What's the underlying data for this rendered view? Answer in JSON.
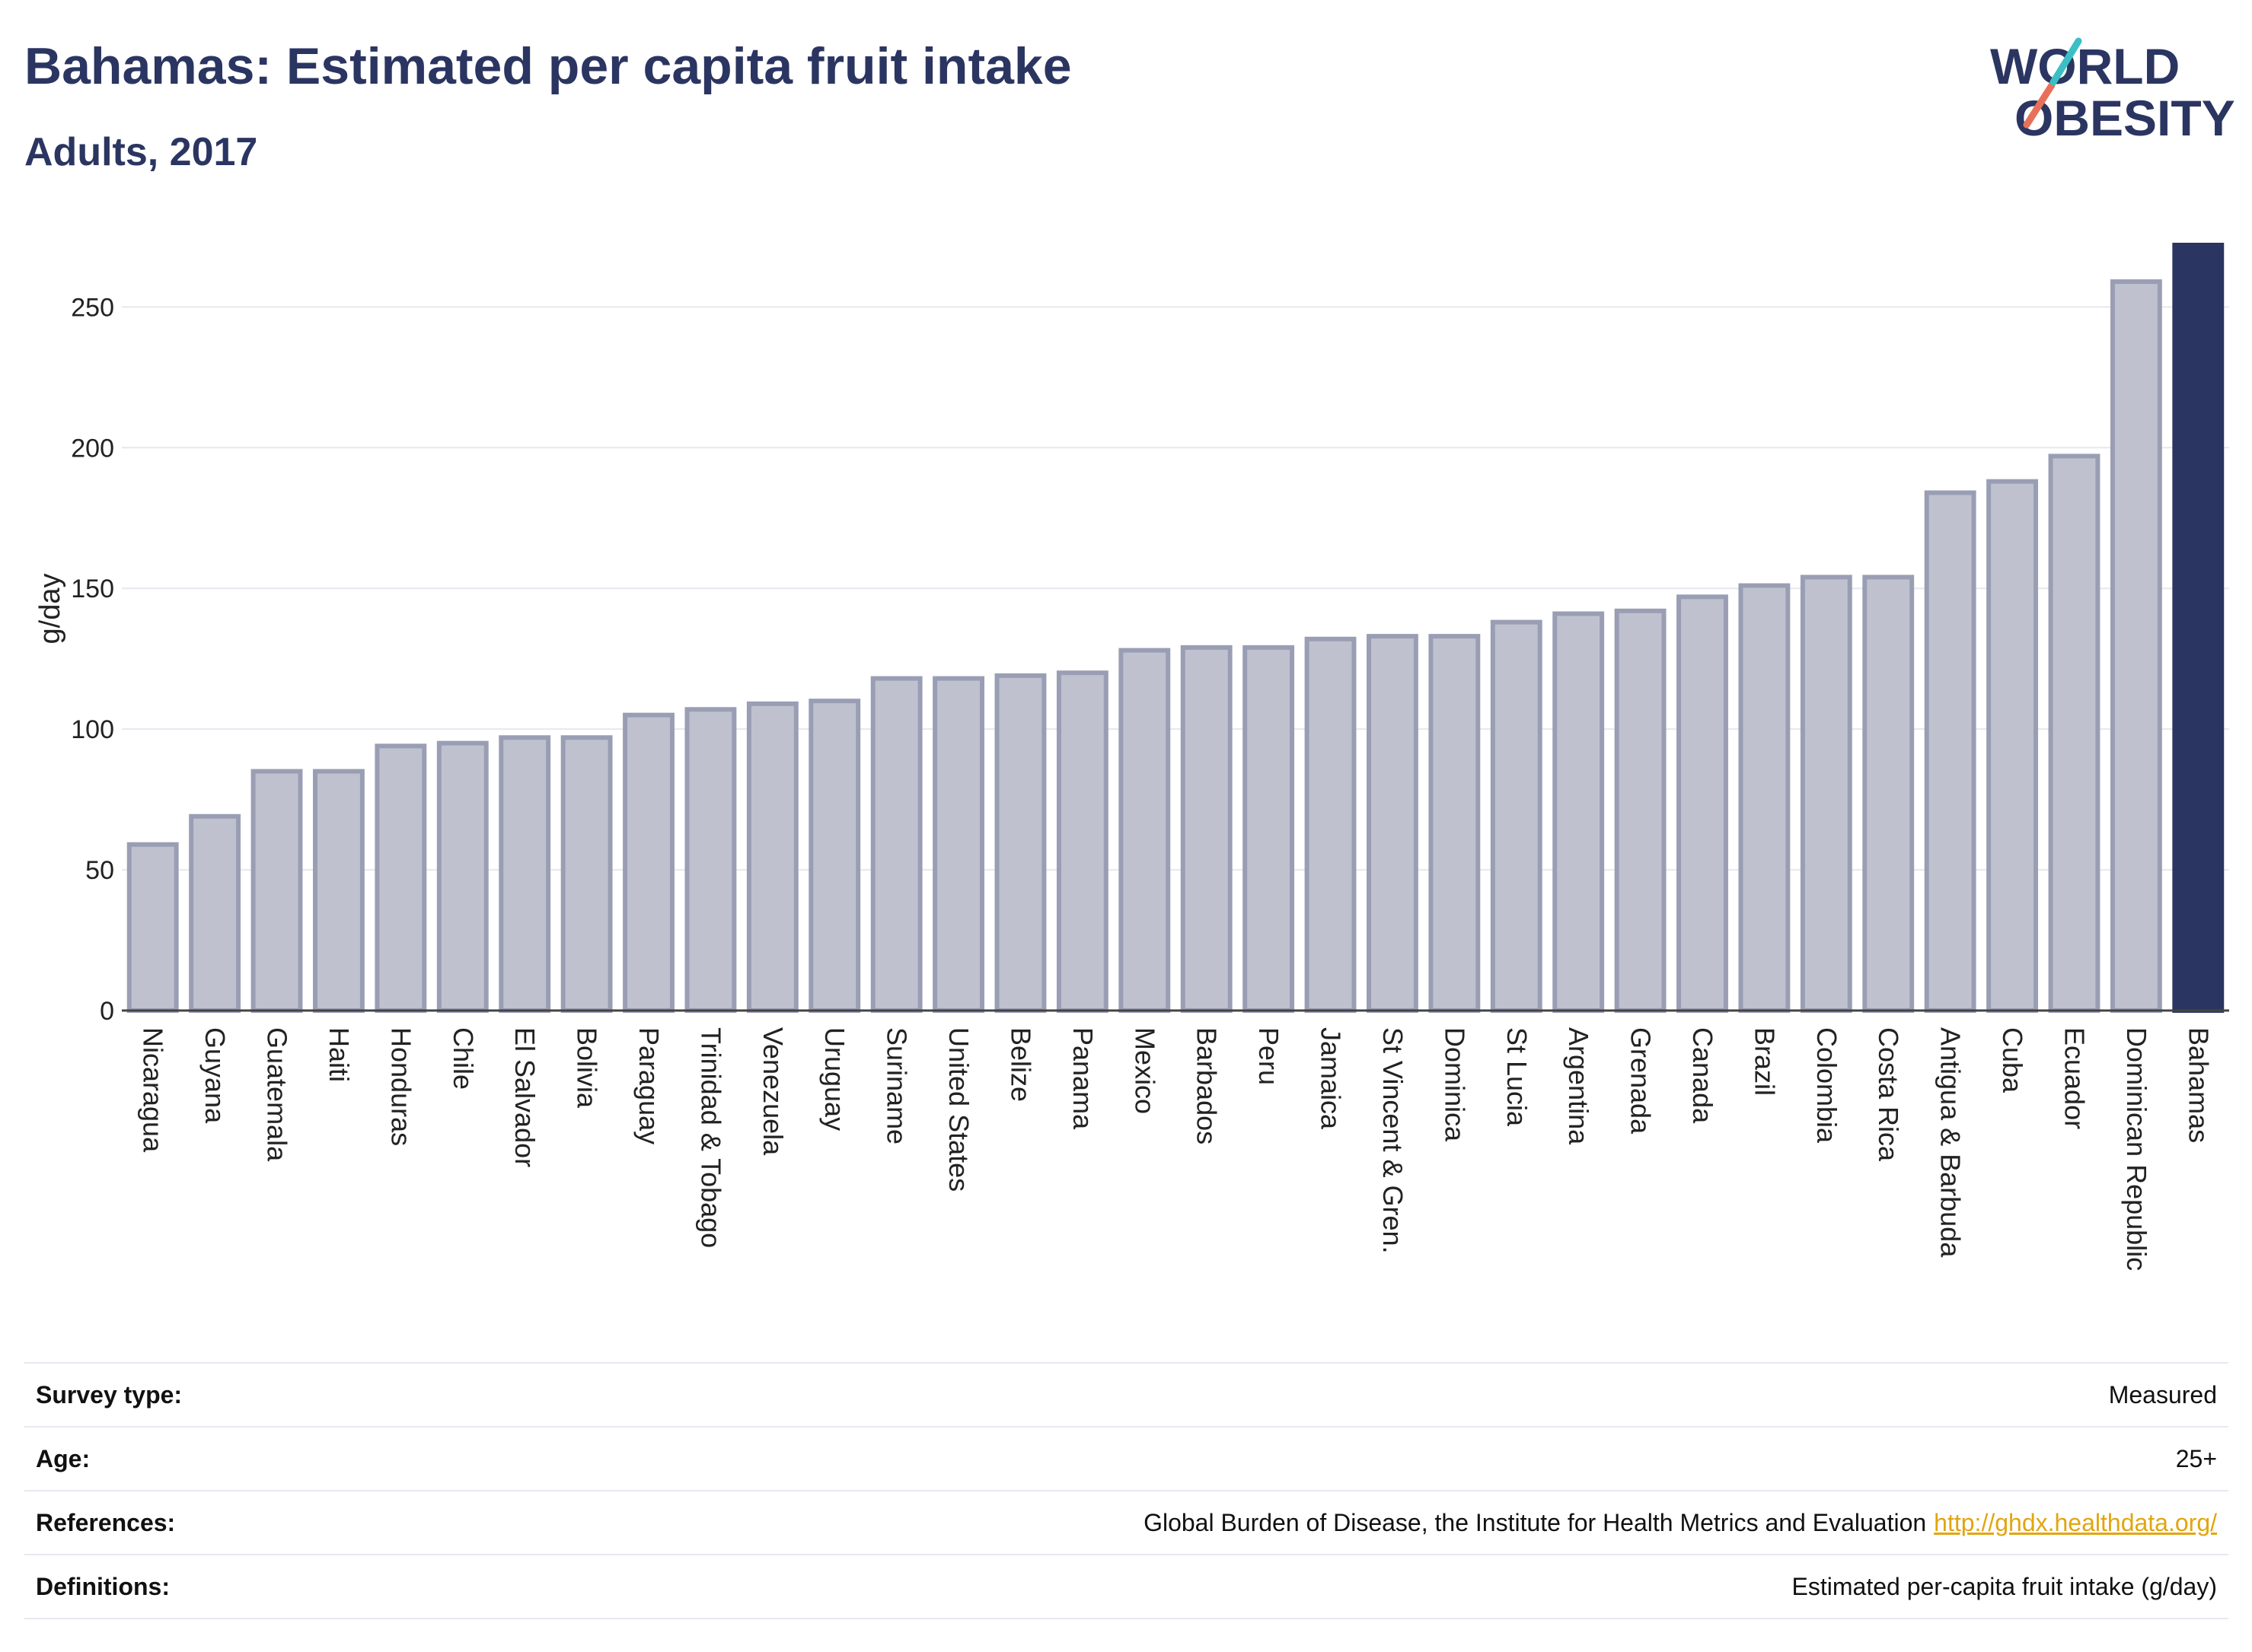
{
  "header": {
    "title": "Bahamas: Estimated per capita fruit intake",
    "subtitle": "Adults, 2017"
  },
  "logo": {
    "line1": "WORLD",
    "line2": "OBESITY",
    "colors": {
      "text": "#2b3561",
      "slash_teal": "#3bbfc4",
      "slash_coral": "#e8705a"
    }
  },
  "chart_data": {
    "type": "bar",
    "ylabel": "g/day",
    "xlabel": "",
    "ylim": [
      0,
      272
    ],
    "yticks": [
      0,
      50,
      100,
      150,
      200,
      250
    ],
    "grid": true,
    "highlight": "Bahamas",
    "colors": {
      "bar": "#bfc2ce",
      "bar_edge": "#9a9eb4",
      "highlight": "#2b3561"
    },
    "categories": [
      "Nicaragua",
      "Guyana",
      "Guatemala",
      "Haiti",
      "Honduras",
      "Chile",
      "El Salvador",
      "Bolivia",
      "Paraguay",
      "Trinidad & Tobago",
      "Venezuela",
      "Uruguay",
      "Suriname",
      "United States",
      "Belize",
      "Panama",
      "Mexico",
      "Barbados",
      "Peru",
      "Jamaica",
      "St Vincent & Gren.",
      "Dominica",
      "St Lucia",
      "Argentina",
      "Grenada",
      "Canada",
      "Brazil",
      "Colombia",
      "Costa Rica",
      "Antigua & Barbuda",
      "Cuba",
      "Ecuador",
      "Dominican Republic",
      "Bahamas"
    ],
    "values": [
      59,
      69,
      85,
      85,
      94,
      95,
      97,
      97,
      105,
      107,
      109,
      110,
      118,
      118,
      119,
      120,
      128,
      129,
      129,
      132,
      133,
      133,
      138,
      141,
      142,
      147,
      151,
      154,
      154,
      184,
      188,
      197,
      259,
      272
    ]
  },
  "meta": {
    "survey_type": {
      "label": "Survey type:",
      "value": "Measured"
    },
    "age": {
      "label": "Age:",
      "value": "25+"
    },
    "references": {
      "label": "References:",
      "value": "Global Burden of Disease, the Institute for Health Metrics and Evaluation",
      "link": "http://ghdx.healthdata.org/"
    },
    "definitions": {
      "label": "Definitions:",
      "value": "Estimated per-capita fruit intake (g/day)"
    }
  }
}
